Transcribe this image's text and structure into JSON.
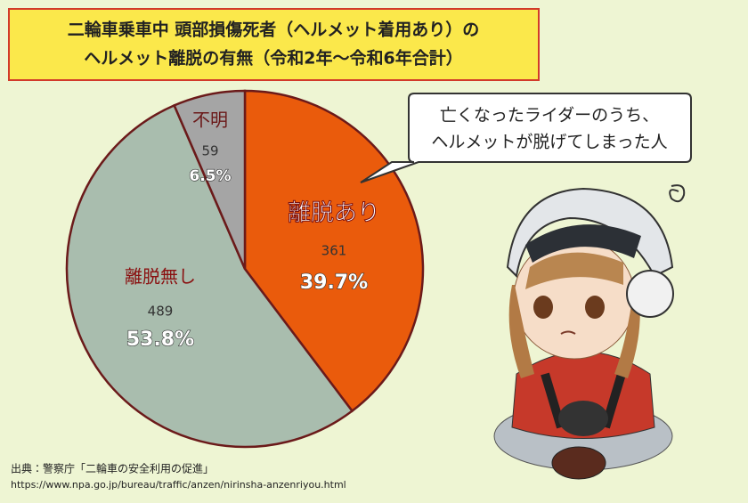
{
  "chart_data": {
    "type": "pie",
    "title": [
      "二輪車乗車中 頭部損傷死者（ヘルメット着用あり）の",
      "ヘルメット離脱の有無（令和2年～令和6年合計）"
    ],
    "categories": [
      "離脱あり",
      "離脱無し",
      "不明"
    ],
    "values": [
      361,
      489,
      59
    ],
    "shares": [
      39.7,
      53.8,
      6.5
    ],
    "share_labels": [
      "39.7%",
      "53.8%",
      "6.5%"
    ],
    "colors": [
      "#ea5b0c",
      "#a9bdae",
      "#a5a5a5"
    ],
    "callout": [
      "亡くなったライダーのうち、",
      "ヘルメットが脱げてしまった人"
    ],
    "source": [
      "出典：警察庁「二輪車の安全利用の促進」",
      "https://www.npa.go.jp/bureau/traffic/anzen/nirinsha-anzenriyou.html"
    ]
  }
}
